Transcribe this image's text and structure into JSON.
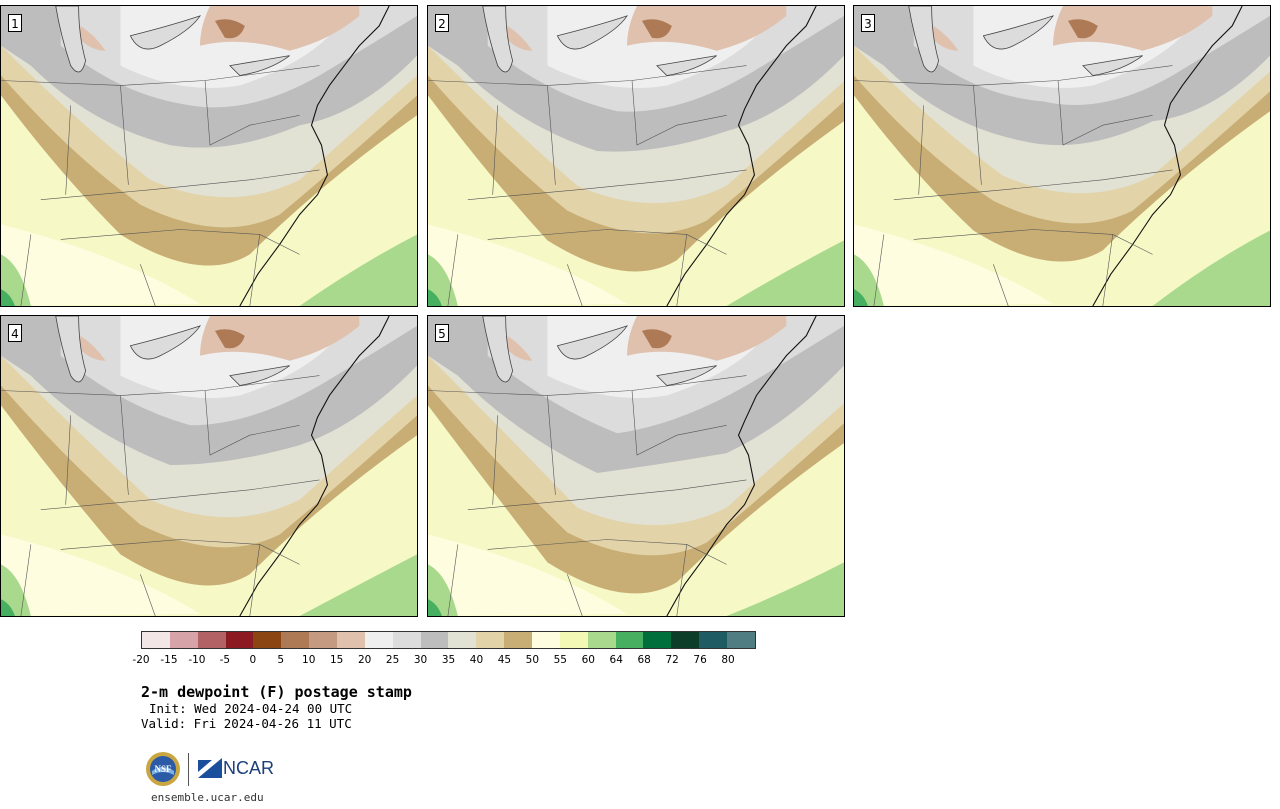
{
  "panels": [
    {
      "label": "1"
    },
    {
      "label": "2"
    },
    {
      "label": "3"
    },
    {
      "label": "4"
    },
    {
      "label": "5"
    }
  ],
  "colorbar": {
    "ticks": [
      "-20",
      "-15",
      "-10",
      "-5",
      "0",
      "5",
      "10",
      "15",
      "20",
      "25",
      "30",
      "35",
      "40",
      "45",
      "50",
      "55",
      "60",
      "64",
      "68",
      "72",
      "76",
      "80"
    ],
    "colors": [
      "#f2e6e6",
      "#d6a3a8",
      "#b26165",
      "#8c1a22",
      "#8b4513",
      "#ad7a55",
      "#c49a80",
      "#dfc1ae",
      "#efefef",
      "#dcdcdc",
      "#bdbdbd",
      "#e1e1d4",
      "#e3d3a8",
      "#c8ae75",
      "#fefde0",
      "#f3f9b4",
      "#a9d98d",
      "#46b060",
      "#006f3b",
      "#0c3d28",
      "#1f5b62",
      "#4f7d82"
    ]
  },
  "title": "2-m dewpoint (F) postage stamp",
  "init": "Init: Wed 2024-04-24 00 UTC",
  "valid": "Valid: Fri 2024-04-26 11 UTC",
  "footer": {
    "nsf_text": "NSF",
    "ncar_text": "NCAR",
    "site": "ensemble.ucar.edu"
  }
}
